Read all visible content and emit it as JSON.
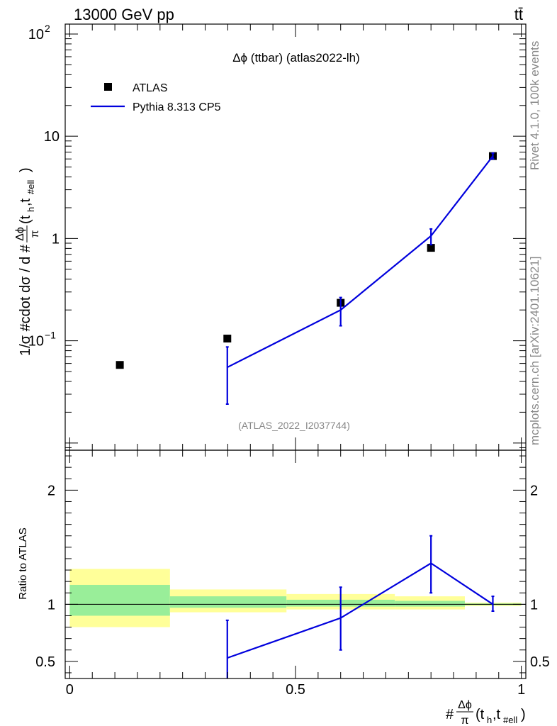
{
  "header": {
    "left": "13000 GeV pp",
    "right": "tt̄"
  },
  "side_text": {
    "top": "Rivet 4.1.0,  100k events",
    "bottom": "mcplots.cern.ch [arXiv:2401.10621]"
  },
  "chart_data": [
    {
      "panel": "main",
      "type": "line",
      "title": "Δϕ (ttbar) (atlas2022-lh)",
      "ylabel_parts": [
        "1/σ #cdot dσ / d #",
        "Δϕ",
        "π",
        "(t",
        "h",
        ",t",
        "#ell",
        ")"
      ],
      "analysis_tag": "(ATLAS_2022_I2037744)",
      "yscale": "log",
      "ylim": [
        0.0085,
        125
      ],
      "xlim": [
        -0.01,
        1.01
      ],
      "yticks": [
        {
          "value": 0.1,
          "base": "10",
          "exp": "−1"
        },
        {
          "value": 1,
          "label": "1"
        },
        {
          "value": 10,
          "label": "10"
        },
        {
          "value": 100,
          "base": "10",
          "exp": "2"
        }
      ],
      "legend": {
        "position": "top-left",
        "entries": [
          {
            "label": "ATLAS",
            "marker": "square",
            "color": "#000000"
          },
          {
            "label": "Pythia 8.313 CP5",
            "marker": "line",
            "color": "#0000dd"
          }
        ]
      },
      "series": [
        {
          "name": "ATLAS",
          "color": "#000000",
          "x": [
            0.111,
            0.349,
            0.6,
            0.8,
            0.937
          ],
          "y": [
            0.058,
            0.105,
            0.235,
            0.81,
            6.4
          ]
        },
        {
          "name": "Pythia 8.313 CP5",
          "color": "#0000dd",
          "x": [
            0.349,
            0.6,
            0.8,
            0.937
          ],
          "y": [
            0.055,
            0.2,
            1.06,
            6.4
          ],
          "err_low": [
            0.024,
            0.14,
            0.87,
            6.0
          ],
          "err_high": [
            0.087,
            0.265,
            1.24,
            6.85
          ]
        }
      ]
    },
    {
      "panel": "ratio",
      "type": "line",
      "ylabel": "Ratio to ATLAS",
      "xlabel_parts": [
        "#",
        "Δϕ",
        "π",
        "(t",
        "h",
        ",t",
        "#ell",
        ")"
      ],
      "ylim": [
        0.35,
        2.35
      ],
      "xlim": [
        -0.01,
        1.01
      ],
      "yticks": [
        0.5,
        1,
        2
      ],
      "xticks": [
        0,
        0.5,
        1
      ],
      "xtick_labels": [
        "0",
        "0.5",
        "1"
      ],
      "ytick_labels": [
        "0.5",
        "1",
        "2"
      ],
      "reference": 1,
      "bands": [
        {
          "x0": 0.0,
          "x1": 0.222,
          "y_outer": [
            0.8,
            1.31
          ],
          "y_inner": [
            0.9,
            1.17
          ]
        },
        {
          "x0": 0.222,
          "x1": 0.48,
          "y_outer": [
            0.93,
            1.13
          ],
          "y_inner": [
            0.97,
            1.07
          ]
        },
        {
          "x0": 0.48,
          "x1": 0.72,
          "y_outer": [
            0.955,
            1.09
          ],
          "y_inner": [
            0.98,
            1.04
          ]
        },
        {
          "x0": 0.72,
          "x1": 0.875,
          "y_outer": [
            0.955,
            1.07
          ],
          "y_inner": [
            0.98,
            1.03
          ]
        },
        {
          "x0": 0.875,
          "x1": 1.0,
          "y_outer": [
            0.985,
            1.015
          ],
          "y_inner": [
            0.993,
            1.007
          ]
        }
      ],
      "series": [
        {
          "name": "Pythia 8.313 CP5",
          "color": "#0000dd",
          "x": [
            0.349,
            0.6,
            0.8,
            0.937
          ],
          "y": [
            0.53,
            0.88,
            1.36,
            1.0
          ],
          "err_low": [
            0.3,
            0.6,
            1.1,
            0.94
          ],
          "err_high": [
            0.86,
            1.15,
            1.6,
            1.07
          ]
        }
      ]
    }
  ]
}
